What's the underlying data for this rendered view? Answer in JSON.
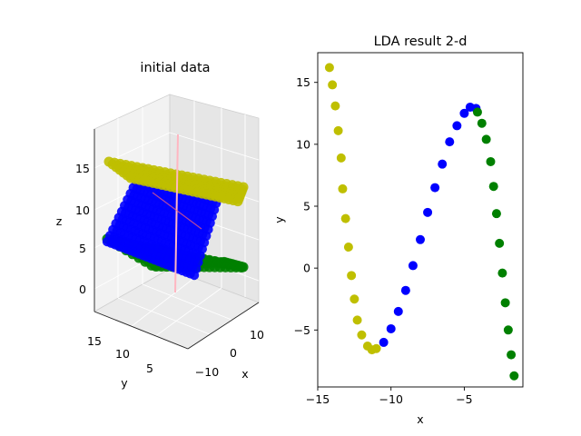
{
  "chart_data": [
    {
      "type": "scatter3d",
      "title": "initial data",
      "xlabel": "x",
      "ylabel": "y",
      "zlabel": "z",
      "x_ticks": [
        "10",
        "0",
        "−10"
      ],
      "y_ticks": [
        "15",
        "10",
        "5"
      ],
      "z_ticks": [
        "15",
        "10",
        "5",
        "0"
      ],
      "series": [
        {
          "color": "#bfbf00",
          "z": 15,
          "x_range": [
            -15,
            15
          ],
          "y_range": [
            2,
            17
          ]
        },
        {
          "color": "#0000ff",
          "z_range": [
            5,
            12
          ],
          "x_range": [
            -15,
            15
          ],
          "y_range": [
            2,
            17
          ]
        },
        {
          "color": "#008000",
          "z": 5,
          "x_range": [
            -15,
            15
          ],
          "y_range": [
            2,
            17
          ]
        }
      ],
      "annotation_line_color": "#ffb6c1"
    },
    {
      "type": "scatter",
      "title": "LDA result 2-d",
      "xlabel": "x",
      "ylabel": "y",
      "xlim": [
        -15,
        -1
      ],
      "ylim": [
        -9.6,
        17.4
      ],
      "x_ticks": [
        -15,
        -10,
        -5
      ],
      "y_ticks": [
        -5,
        0,
        5,
        10,
        15
      ],
      "series": [
        {
          "color": "#bfbf00",
          "points": [
            [
              -14.2,
              16.2
            ],
            [
              -14.0,
              14.8
            ],
            [
              -13.8,
              13.1
            ],
            [
              -13.6,
              11.1
            ],
            [
              -13.4,
              8.9
            ],
            [
              -13.3,
              6.4
            ],
            [
              -13.1,
              4.0
            ],
            [
              -12.9,
              1.7
            ],
            [
              -12.7,
              -0.6
            ],
            [
              -12.5,
              -2.5
            ],
            [
              -12.3,
              -4.2
            ],
            [
              -12.0,
              -5.4
            ],
            [
              -11.6,
              -6.3
            ],
            [
              -11.3,
              -6.6
            ],
            [
              -11.0,
              -6.5
            ]
          ]
        },
        {
          "color": "#0000ff",
          "points": [
            [
              -10.5,
              -6.0
            ],
            [
              -10.0,
              -4.9
            ],
            [
              -9.5,
              -3.5
            ],
            [
              -9.0,
              -1.8
            ],
            [
              -8.5,
              0.2
            ],
            [
              -8.0,
              2.3
            ],
            [
              -7.5,
              4.5
            ],
            [
              -7.0,
              6.5
            ],
            [
              -6.5,
              8.4
            ],
            [
              -6.0,
              10.2
            ],
            [
              -5.5,
              11.5
            ],
            [
              -5.0,
              12.5
            ],
            [
              -4.6,
              13.0
            ],
            [
              -4.2,
              12.9
            ]
          ]
        },
        {
          "color": "#008000",
          "points": [
            [
              -4.1,
              12.6
            ],
            [
              -3.8,
              11.7
            ],
            [
              -3.5,
              10.4
            ],
            [
              -3.2,
              8.6
            ],
            [
              -3.0,
              6.6
            ],
            [
              -2.8,
              4.4
            ],
            [
              -2.6,
              2.0
            ],
            [
              -2.4,
              -0.4
            ],
            [
              -2.2,
              -2.8
            ],
            [
              -2.0,
              -5.0
            ],
            [
              -1.8,
              -7.0
            ],
            [
              -1.6,
              -8.7
            ]
          ]
        }
      ]
    }
  ]
}
